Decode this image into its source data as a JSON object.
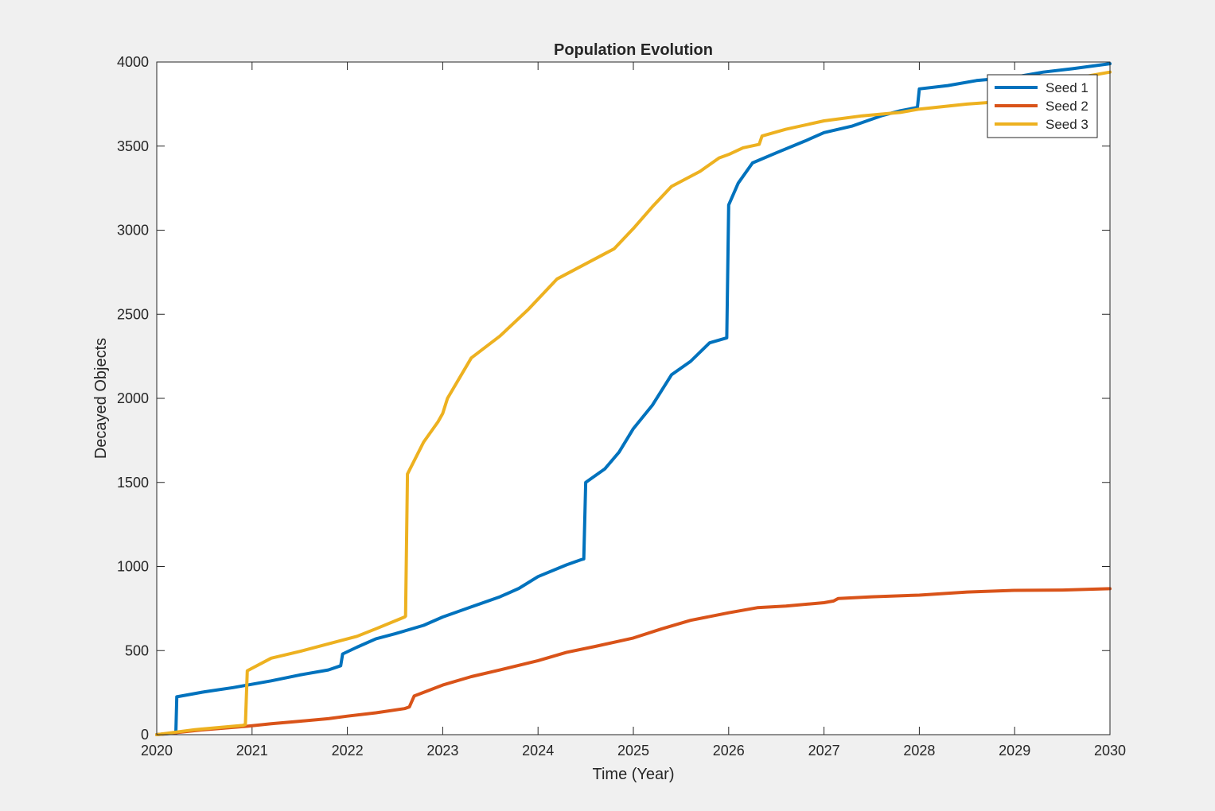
{
  "chart_data": {
    "type": "line",
    "title": "Population Evolution",
    "xlabel": "Time (Year)",
    "ylabel": "Decayed Objects",
    "xlim": [
      2020,
      2030
    ],
    "ylim": [
      0,
      4000
    ],
    "xticks": [
      2020,
      2021,
      2022,
      2023,
      2024,
      2025,
      2026,
      2027,
      2028,
      2029,
      2030
    ],
    "yticks": [
      0,
      500,
      1000,
      1500,
      2000,
      2500,
      3000,
      3500,
      4000
    ],
    "grid": false,
    "legend_position": "top-right",
    "series": [
      {
        "name": "Seed 1",
        "color": "#0072BD",
        "x": [
          2020.0,
          2020.2,
          2020.21,
          2020.5,
          2020.8,
          2021.2,
          2021.5,
          2021.8,
          2021.93,
          2021.95,
          2022.1,
          2022.3,
          2022.5,
          2022.8,
          2023.0,
          2023.3,
          2023.6,
          2023.8,
          2024.0,
          2024.3,
          2024.45,
          2024.48,
          2024.5,
          2024.7,
          2024.85,
          2025.0,
          2025.2,
          2025.4,
          2025.6,
          2025.8,
          2025.98,
          2026.0,
          2026.1,
          2026.25,
          2026.5,
          2026.8,
          2027.0,
          2027.3,
          2027.6,
          2027.8,
          2027.98,
          2028.0,
          2028.3,
          2028.6,
          2029.0,
          2029.3,
          2029.6,
          2030.0
        ],
        "y": [
          0,
          10,
          225,
          255,
          280,
          320,
          355,
          385,
          410,
          480,
          520,
          570,
          600,
          650,
          700,
          760,
          820,
          870,
          940,
          1010,
          1040,
          1045,
          1500,
          1580,
          1680,
          1820,
          1960,
          2140,
          2220,
          2330,
          2360,
          3150,
          3280,
          3400,
          3460,
          3530,
          3580,
          3620,
          3680,
          3710,
          3730,
          3840,
          3860,
          3890,
          3910,
          3940,
          3960,
          3990
        ]
      },
      {
        "name": "Seed 2",
        "color": "#D95319",
        "x": [
          2020.0,
          2020.5,
          2020.95,
          2021.2,
          2021.5,
          2021.8,
          2022.0,
          2022.3,
          2022.6,
          2022.65,
          2022.7,
          2023.0,
          2023.3,
          2023.6,
          2024.0,
          2024.3,
          2024.6,
          2025.0,
          2025.3,
          2025.6,
          2026.0,
          2026.3,
          2026.6,
          2027.0,
          2027.1,
          2027.15,
          2027.5,
          2028.0,
          2028.5,
          2029.0,
          2029.5,
          2030.0
        ],
        "y": [
          0,
          30,
          50,
          65,
          80,
          95,
          110,
          130,
          155,
          165,
          230,
          295,
          345,
          385,
          440,
          490,
          525,
          575,
          630,
          680,
          725,
          755,
          765,
          785,
          795,
          810,
          820,
          830,
          848,
          858,
          860,
          868
        ]
      },
      {
        "name": "Seed 3",
        "color": "#EDB120",
        "x": [
          2020.0,
          2020.4,
          2020.9,
          2020.93,
          2020.95,
          2021.2,
          2021.5,
          2021.8,
          2022.1,
          2022.3,
          2022.6,
          2022.61,
          2022.63,
          2022.8,
          2022.95,
          2023.0,
          2023.05,
          2023.3,
          2023.6,
          2023.9,
          2024.2,
          2024.5,
          2024.8,
          2025.0,
          2025.2,
          2025.4,
          2025.7,
          2025.9,
          2026.0,
          2026.15,
          2026.32,
          2026.35,
          2026.6,
          2027.0,
          2027.4,
          2027.8,
          2028.0,
          2028.5,
          2029.0,
          2029.3,
          2029.6,
          2030.0
        ],
        "y": [
          0,
          30,
          55,
          60,
          380,
          455,
          495,
          540,
          585,
          630,
          700,
          705,
          1550,
          1740,
          1860,
          1910,
          2000,
          2240,
          2370,
          2530,
          2710,
          2800,
          2890,
          3010,
          3140,
          3260,
          3350,
          3430,
          3450,
          3490,
          3510,
          3560,
          3600,
          3650,
          3680,
          3700,
          3720,
          3750,
          3770,
          3780,
          3900,
          3940
        ]
      }
    ]
  }
}
